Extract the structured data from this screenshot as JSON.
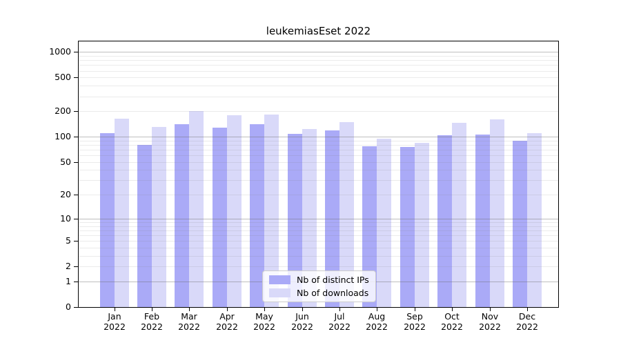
{
  "title": "leukemiasEset 2022",
  "chart_data": {
    "type": "bar",
    "title": "leukemiasEset 2022",
    "categories": [
      "Jan",
      "Feb",
      "Mar",
      "Apr",
      "May",
      "Jun",
      "Jul",
      "Aug",
      "Sep",
      "Oct",
      "Nov",
      "Dec"
    ],
    "x_tick_line2": "2022",
    "series": [
      {
        "name": "Nb of distinct IPs",
        "color": "#aaaaf7",
        "values": [
          110,
          80,
          140,
          127,
          142,
          108,
          119,
          77,
          76,
          104,
          106,
          90
        ]
      },
      {
        "name": "Nb of downloads",
        "color": "#d9d9f9",
        "values": [
          165,
          131,
          200,
          181,
          183,
          123,
          150,
          94,
          85,
          146,
          162,
          110
        ]
      }
    ],
    "y_ticks": [
      0,
      1,
      2,
      5,
      10,
      20,
      50,
      100,
      200,
      500,
      1000
    ],
    "y_scale": "log1p",
    "ylim": [
      0,
      1330
    ],
    "xlabel": "",
    "ylabel": "",
    "grid": true,
    "legend_position": "lower center",
    "axis_color": "#000000",
    "major_gridline_values": [
      1,
      10,
      100,
      1000
    ],
    "background_color": "#ffffff"
  }
}
